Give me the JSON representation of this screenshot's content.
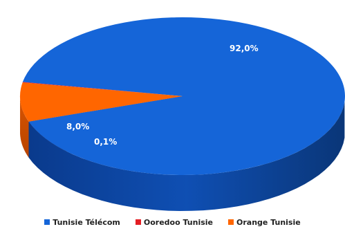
{
  "chart_data": {
    "type": "pie",
    "title": "",
    "categories": [
      "Tunisie Télécom",
      "Ooredoo Tunisie",
      "Orange Tunisie"
    ],
    "values": [
      92.0,
      0.1,
      8.0
    ],
    "data_labels": [
      "92,0%",
      "0,1%",
      "8,0%"
    ],
    "colors": [
      "#1565d8",
      "#e31e24",
      "#ff6600"
    ],
    "style": "3d",
    "legend_position": "bottom"
  }
}
